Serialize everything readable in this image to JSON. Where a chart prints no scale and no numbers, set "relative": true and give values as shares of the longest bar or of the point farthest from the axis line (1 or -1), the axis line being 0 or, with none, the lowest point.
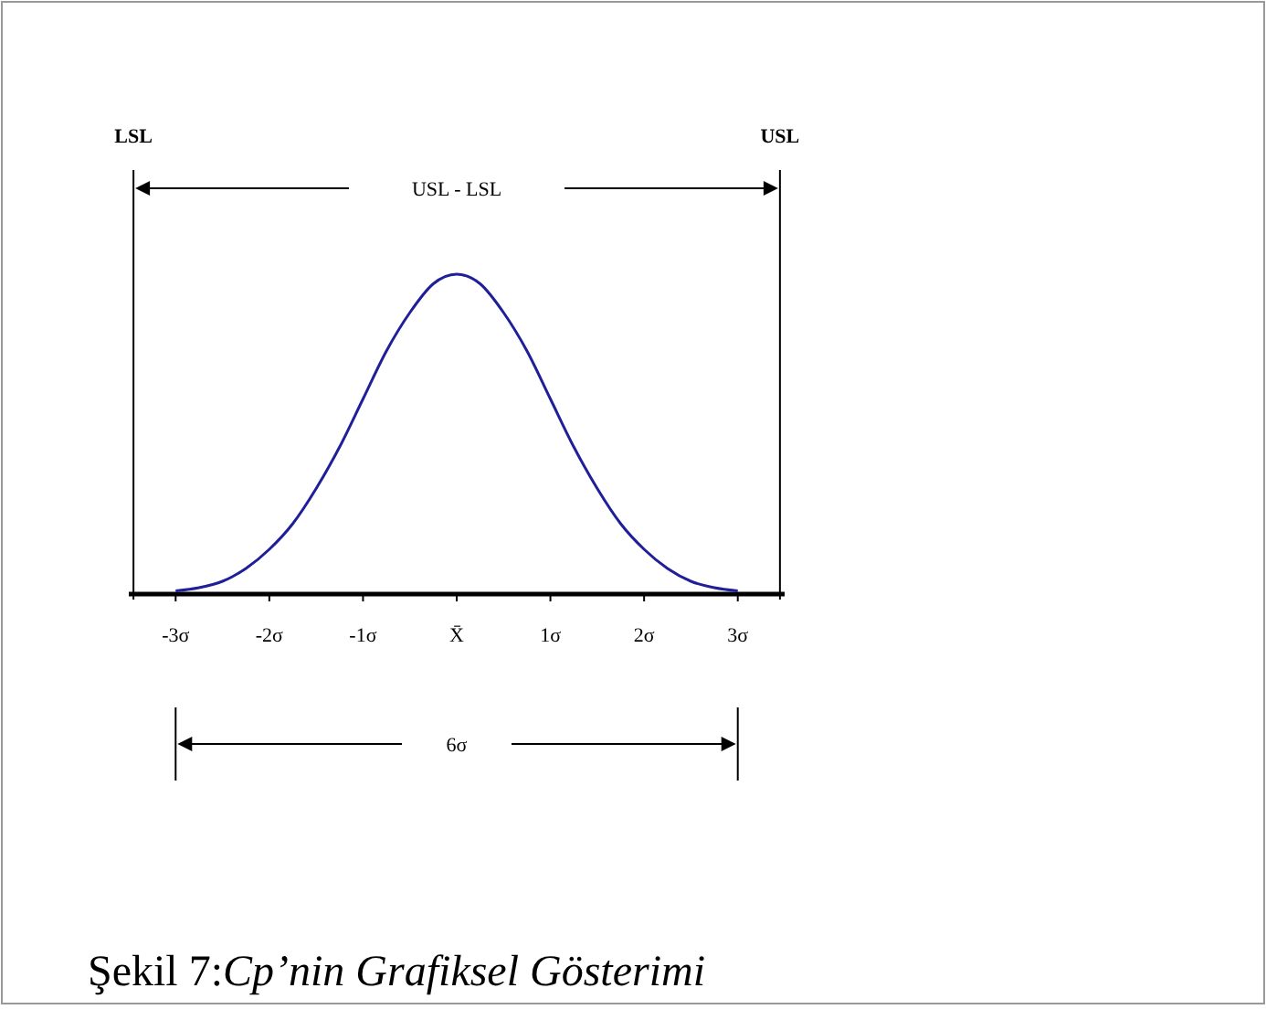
{
  "chart_data": {
    "type": "line",
    "relative": true,
    "x": [
      -3,
      -2.75,
      -2.5,
      -2.25,
      -2,
      -1.75,
      -1.5,
      -1.25,
      -1,
      -0.75,
      -0.5,
      -0.25,
      0,
      0.25,
      0.5,
      0.75,
      1,
      1.25,
      1.5,
      1.75,
      2,
      2.25,
      2.5,
      2.75,
      3
    ],
    "series": [
      {
        "color": "#1f1f9a",
        "values": [
          0.01,
          0.02,
          0.04,
          0.08,
          0.14,
          0.22,
          0.33,
          0.46,
          0.61,
          0.76,
          0.88,
          0.97,
          1,
          0.97,
          0.88,
          0.76,
          0.61,
          0.46,
          0.33,
          0.22,
          0.14,
          0.08,
          0.04,
          0.02,
          0.01
        ]
      }
    ],
    "xlim": [
      -3.5,
      3.5
    ],
    "xticks": [
      {
        "value": -3,
        "label": "-3σ"
      },
      {
        "value": -2,
        "label": "-2σ"
      },
      {
        "value": -1,
        "label": "-1σ"
      },
      {
        "value": 0,
        "label": "X̄"
      },
      {
        "value": 1,
        "label": "1σ"
      },
      {
        "value": 2,
        "label": "2σ"
      },
      {
        "value": 3,
        "label": "3σ"
      }
    ],
    "ref_lines": [
      {
        "axis": "x",
        "value": -3.45,
        "label": "LSL"
      },
      {
        "axis": "x",
        "value": 3.45,
        "label": "USL"
      }
    ],
    "annotations": [
      "USL - LSL",
      "6σ",
      "Şekil 7:Cp’nin Grafiksel Gösterimi"
    ]
  }
}
